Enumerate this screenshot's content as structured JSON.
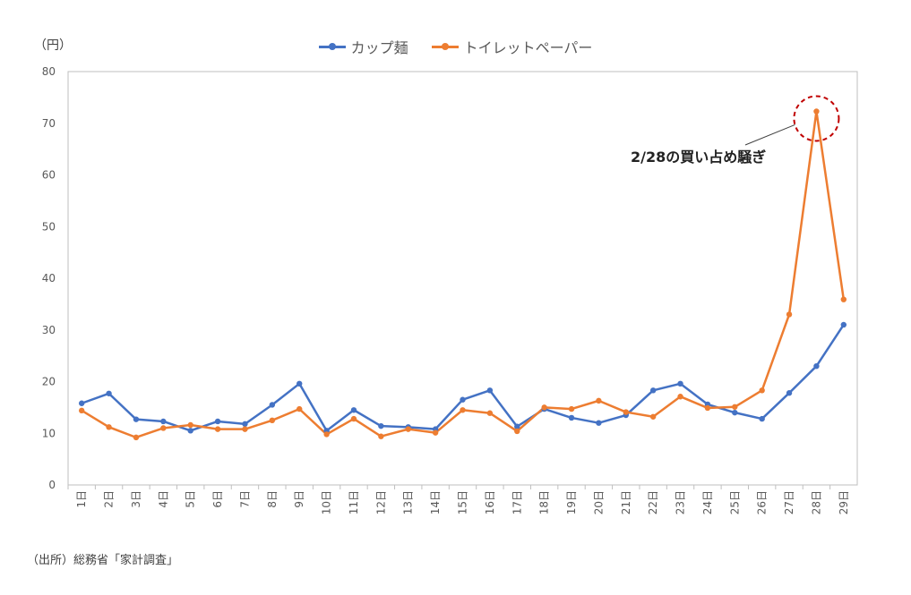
{
  "unit_label": "（円）",
  "source_note": "（出所）総務省「家計調査」",
  "annotation": "2/28の買い占め騒ぎ",
  "colors": {
    "cup_noodle": "#4472C4",
    "toilet_paper": "#ED7D31",
    "grid": "#d9d9d9",
    "axis": "#bfbfbf",
    "highlight": "#c00000"
  },
  "chart_data": {
    "type": "line",
    "categories": [
      "1日",
      "2日",
      "3日",
      "4日",
      "5日",
      "6日",
      "7日",
      "8日",
      "9日",
      "10日",
      "11日",
      "12日",
      "13日",
      "14日",
      "15日",
      "16日",
      "17日",
      "18日",
      "19日",
      "20日",
      "21日",
      "22日",
      "23日",
      "24日",
      "25日",
      "26日",
      "27日",
      "28日",
      "29日"
    ],
    "series": [
      {
        "name": "カップ麺",
        "values": [
          15.8,
          17.7,
          12.7,
          12.3,
          10.5,
          12.3,
          11.8,
          15.5,
          19.6,
          10.5,
          14.5,
          11.4,
          11.2,
          10.8,
          16.5,
          18.3,
          11.3,
          14.7,
          13.0,
          12.0,
          13.5,
          18.3,
          19.6,
          15.6,
          14.0,
          12.8,
          17.8,
          23.0,
          31.0
        ]
      },
      {
        "name": "トイレットペーパー",
        "values": [
          14.4,
          11.2,
          9.2,
          11.0,
          11.6,
          10.8,
          10.8,
          12.5,
          14.7,
          9.8,
          12.8,
          9.4,
          10.8,
          10.1,
          14.5,
          13.9,
          10.4,
          15.0,
          14.7,
          16.3,
          14.1,
          13.2,
          17.1,
          14.9,
          15.1,
          18.3,
          33.0,
          72.3,
          35.9
        ]
      }
    ],
    "xlabel": "",
    "ylabel": "",
    "ylim": [
      0,
      80
    ],
    "yticks": [
      "0",
      "10",
      "20",
      "30",
      "40",
      "50",
      "60",
      "70",
      "80"
    ],
    "grid": false,
    "legend": "top-center",
    "highlight": {
      "series": "トイレットペーパー",
      "category": "28日"
    }
  }
}
